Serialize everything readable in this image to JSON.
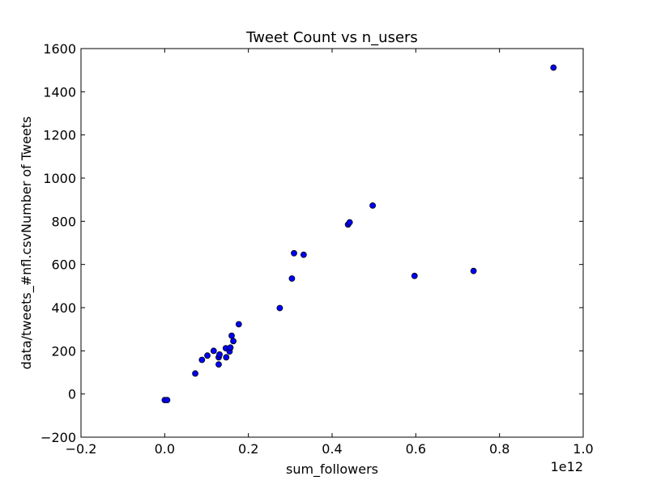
{
  "chart_data": {
    "type": "scatter",
    "title": "Tweet Count vs n_users",
    "xlabel": "sum_followers",
    "ylabel": "data/tweets_#nfl.csvNumber of Tweets",
    "x_offset_label": "1e12",
    "xlim": [
      -0.2,
      1.0
    ],
    "ylim": [
      -200,
      1600
    ],
    "xticks": [
      -0.2,
      0.0,
      0.2,
      0.4,
      0.6,
      0.8,
      1.0
    ],
    "xtick_labels": [
      "−0.2",
      "0.0",
      "0.2",
      "0.4",
      "0.6",
      "0.8",
      "1.0"
    ],
    "yticks": [
      -200,
      0,
      200,
      400,
      600,
      800,
      1000,
      1200,
      1400,
      1600
    ],
    "ytick_labels": [
      "−200",
      "0",
      "200",
      "400",
      "600",
      "800",
      "1000",
      "1200",
      "1400",
      "1600"
    ],
    "grid": false,
    "marker_color": "#0000ff",
    "marker_edge_color": "#000000",
    "points": [
      {
        "x": 0.0,
        "y": -28
      },
      {
        "x": 0.006,
        "y": -28
      },
      {
        "x": 0.073,
        "y": 95
      },
      {
        "x": 0.089,
        "y": 158
      },
      {
        "x": 0.102,
        "y": 178
      },
      {
        "x": 0.117,
        "y": 200
      },
      {
        "x": 0.129,
        "y": 137
      },
      {
        "x": 0.129,
        "y": 170
      },
      {
        "x": 0.131,
        "y": 183
      },
      {
        "x": 0.146,
        "y": 212
      },
      {
        "x": 0.147,
        "y": 170
      },
      {
        "x": 0.155,
        "y": 197
      },
      {
        "x": 0.157,
        "y": 215
      },
      {
        "x": 0.16,
        "y": 270
      },
      {
        "x": 0.164,
        "y": 245
      },
      {
        "x": 0.177,
        "y": 323
      },
      {
        "x": 0.275,
        "y": 398
      },
      {
        "x": 0.304,
        "y": 535
      },
      {
        "x": 0.309,
        "y": 652
      },
      {
        "x": 0.332,
        "y": 645
      },
      {
        "x": 0.438,
        "y": 785
      },
      {
        "x": 0.442,
        "y": 795
      },
      {
        "x": 0.497,
        "y": 873
      },
      {
        "x": 0.597,
        "y": 547
      },
      {
        "x": 0.738,
        "y": 570
      },
      {
        "x": 0.929,
        "y": 1512
      }
    ]
  }
}
